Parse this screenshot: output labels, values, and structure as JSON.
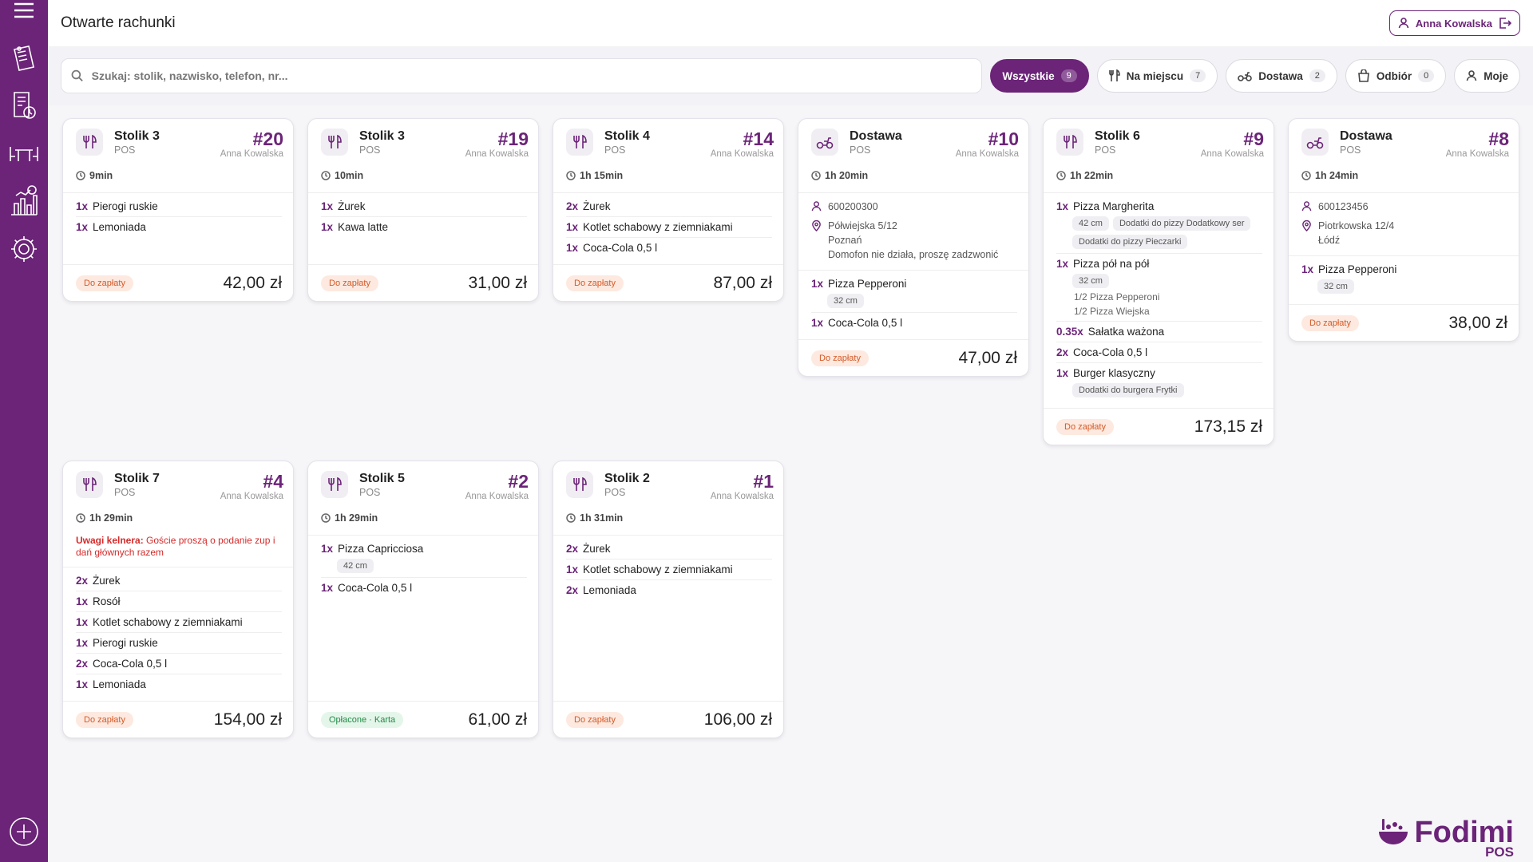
{
  "app": {
    "title": "Otwarte rachunki",
    "user": "Anna Kowalska",
    "brand": "Fodimi",
    "brand_sub": "POS",
    "accent": "#6b2478"
  },
  "search": {
    "placeholder": "Szukaj: stolik, nazwisko, telefon, nr...",
    "value": ""
  },
  "filters": [
    {
      "label": "Wszystkie",
      "count": "9",
      "icon": "grid-icon",
      "active": true
    },
    {
      "label": "Na miejscu",
      "count": "7",
      "icon": "cutlery-icon",
      "active": false
    },
    {
      "label": "Dostawa",
      "count": "2",
      "icon": "scooter-icon",
      "active": false
    },
    {
      "label": "Odbiór",
      "count": "0",
      "icon": "bag-icon",
      "active": false
    },
    {
      "label": "Moje",
      "icon": "person-icon",
      "active": false
    }
  ],
  "orders": [
    {
      "title": "Stolik 3",
      "source": "POS",
      "number": "#20",
      "waiter": "Anna Kowalska",
      "time": "9min",
      "type": "dine-in",
      "items": [
        {
          "qty": "1x",
          "name": "Pierogi ruskie"
        },
        {
          "qty": "1x",
          "name": "Lemoniada"
        }
      ],
      "status": "Do zapłaty",
      "total": "42,00 zł"
    },
    {
      "title": "Stolik 3",
      "source": "POS",
      "number": "#19",
      "waiter": "Anna Kowalska",
      "time": "10min",
      "type": "dine-in",
      "items": [
        {
          "qty": "1x",
          "name": "Żurek"
        },
        {
          "qty": "1x",
          "name": "Kawa latte"
        }
      ],
      "status": "Do zapłaty",
      "total": "31,00 zł"
    },
    {
      "title": "Stolik 4",
      "source": "POS",
      "number": "#14",
      "waiter": "Anna Kowalska",
      "time": "1h 15min",
      "type": "dine-in",
      "items": [
        {
          "qty": "2x",
          "name": "Żurek"
        },
        {
          "qty": "1x",
          "name": "Kotlet schabowy z ziemniakami"
        },
        {
          "qty": "1x",
          "name": "Coca-Cola 0,5 l"
        }
      ],
      "status": "Do zapłaty",
      "total": "87,00 zł"
    },
    {
      "title": "Dostawa",
      "source": "POS",
      "number": "#10",
      "waiter": "Anna Kowalska",
      "time": "1h 20min",
      "type": "delivery",
      "phone": "600200300",
      "address": [
        "Półwiejska 5/12",
        "Poznań",
        "Domofon nie działa, proszę zadzwonić"
      ],
      "items": [
        {
          "qty": "1x",
          "name": "Pizza Pepperoni",
          "mods": [
            "32 cm"
          ]
        },
        {
          "qty": "1x",
          "name": "Coca-Cola 0,5 l"
        }
      ],
      "status": "Do zapłaty",
      "total": "47,00 zł"
    },
    {
      "title": "Stolik 6",
      "source": "POS",
      "number": "#9",
      "waiter": "Anna Kowalska",
      "time": "1h 22min",
      "type": "dine-in",
      "items": [
        {
          "qty": "1x",
          "name": "Pizza Margherita",
          "mods": [
            "42 cm",
            "Dodatki do pizzy Dodatkowy ser",
            "Dodatki do pizzy Pieczarki"
          ]
        },
        {
          "qty": "1x",
          "name": "Pizza pół na pół",
          "mods": [
            "32 cm"
          ],
          "sublines": [
            "1/2 Pizza Pepperoni",
            "1/2 Pizza Wiejska"
          ]
        },
        {
          "qty": "0.35x",
          "name": "Sałatka ważona"
        },
        {
          "qty": "2x",
          "name": "Coca-Cola 0,5 l"
        },
        {
          "qty": "1x",
          "name": "Burger klasyczny",
          "mods": [
            "Dodatki do burgera Frytki"
          ]
        }
      ],
      "status": "Do zapłaty",
      "total": "173,15 zł"
    },
    {
      "title": "Dostawa",
      "source": "POS",
      "number": "#8",
      "waiter": "Anna Kowalska",
      "time": "1h 24min",
      "type": "delivery",
      "phone": "600123456",
      "address": [
        "Piotrkowska 12/4",
        "Łódź"
      ],
      "items": [
        {
          "qty": "1x",
          "name": "Pizza Pepperoni",
          "mods": [
            "32 cm"
          ]
        }
      ],
      "status": "Do zapłaty",
      "total": "38,00 zł"
    },
    {
      "title": "Stolik 7",
      "source": "POS",
      "number": "#4",
      "waiter": "Anna Kowalska",
      "time": "1h 29min",
      "type": "dine-in",
      "note_label": "Uwagi kelnera:",
      "note": "Goście proszą o podanie zup i dań głównych razem",
      "items": [
        {
          "qty": "2x",
          "name": "Żurek"
        },
        {
          "qty": "1x",
          "name": "Rosół"
        },
        {
          "qty": "1x",
          "name": "Kotlet schabowy z ziemniakami"
        },
        {
          "qty": "1x",
          "name": "Pierogi ruskie"
        },
        {
          "qty": "2x",
          "name": "Coca-Cola 0,5 l"
        },
        {
          "qty": "1x",
          "name": "Lemoniada"
        }
      ],
      "status": "Do zapłaty",
      "total": "154,00 zł"
    },
    {
      "title": "Stolik 5",
      "source": "POS",
      "number": "#2",
      "waiter": "Anna Kowalska",
      "time": "1h 29min",
      "type": "dine-in",
      "items": [
        {
          "qty": "1x",
          "name": "Pizza Capricciosa",
          "mods": [
            "42 cm"
          ]
        },
        {
          "qty": "1x",
          "name": "Coca-Cola 0,5 l"
        }
      ],
      "status": "Opłacone · Karta",
      "paid": true,
      "total": "61,00 zł"
    },
    {
      "title": "Stolik 2",
      "source": "POS",
      "number": "#1",
      "waiter": "Anna Kowalska",
      "time": "1h 31min",
      "type": "dine-in",
      "items": [
        {
          "qty": "2x",
          "name": "Żurek"
        },
        {
          "qty": "1x",
          "name": "Kotlet schabowy z ziemniakami"
        },
        {
          "qty": "2x",
          "name": "Lemoniada"
        }
      ],
      "status": "Do zapłaty",
      "total": "106,00 zł"
    }
  ]
}
